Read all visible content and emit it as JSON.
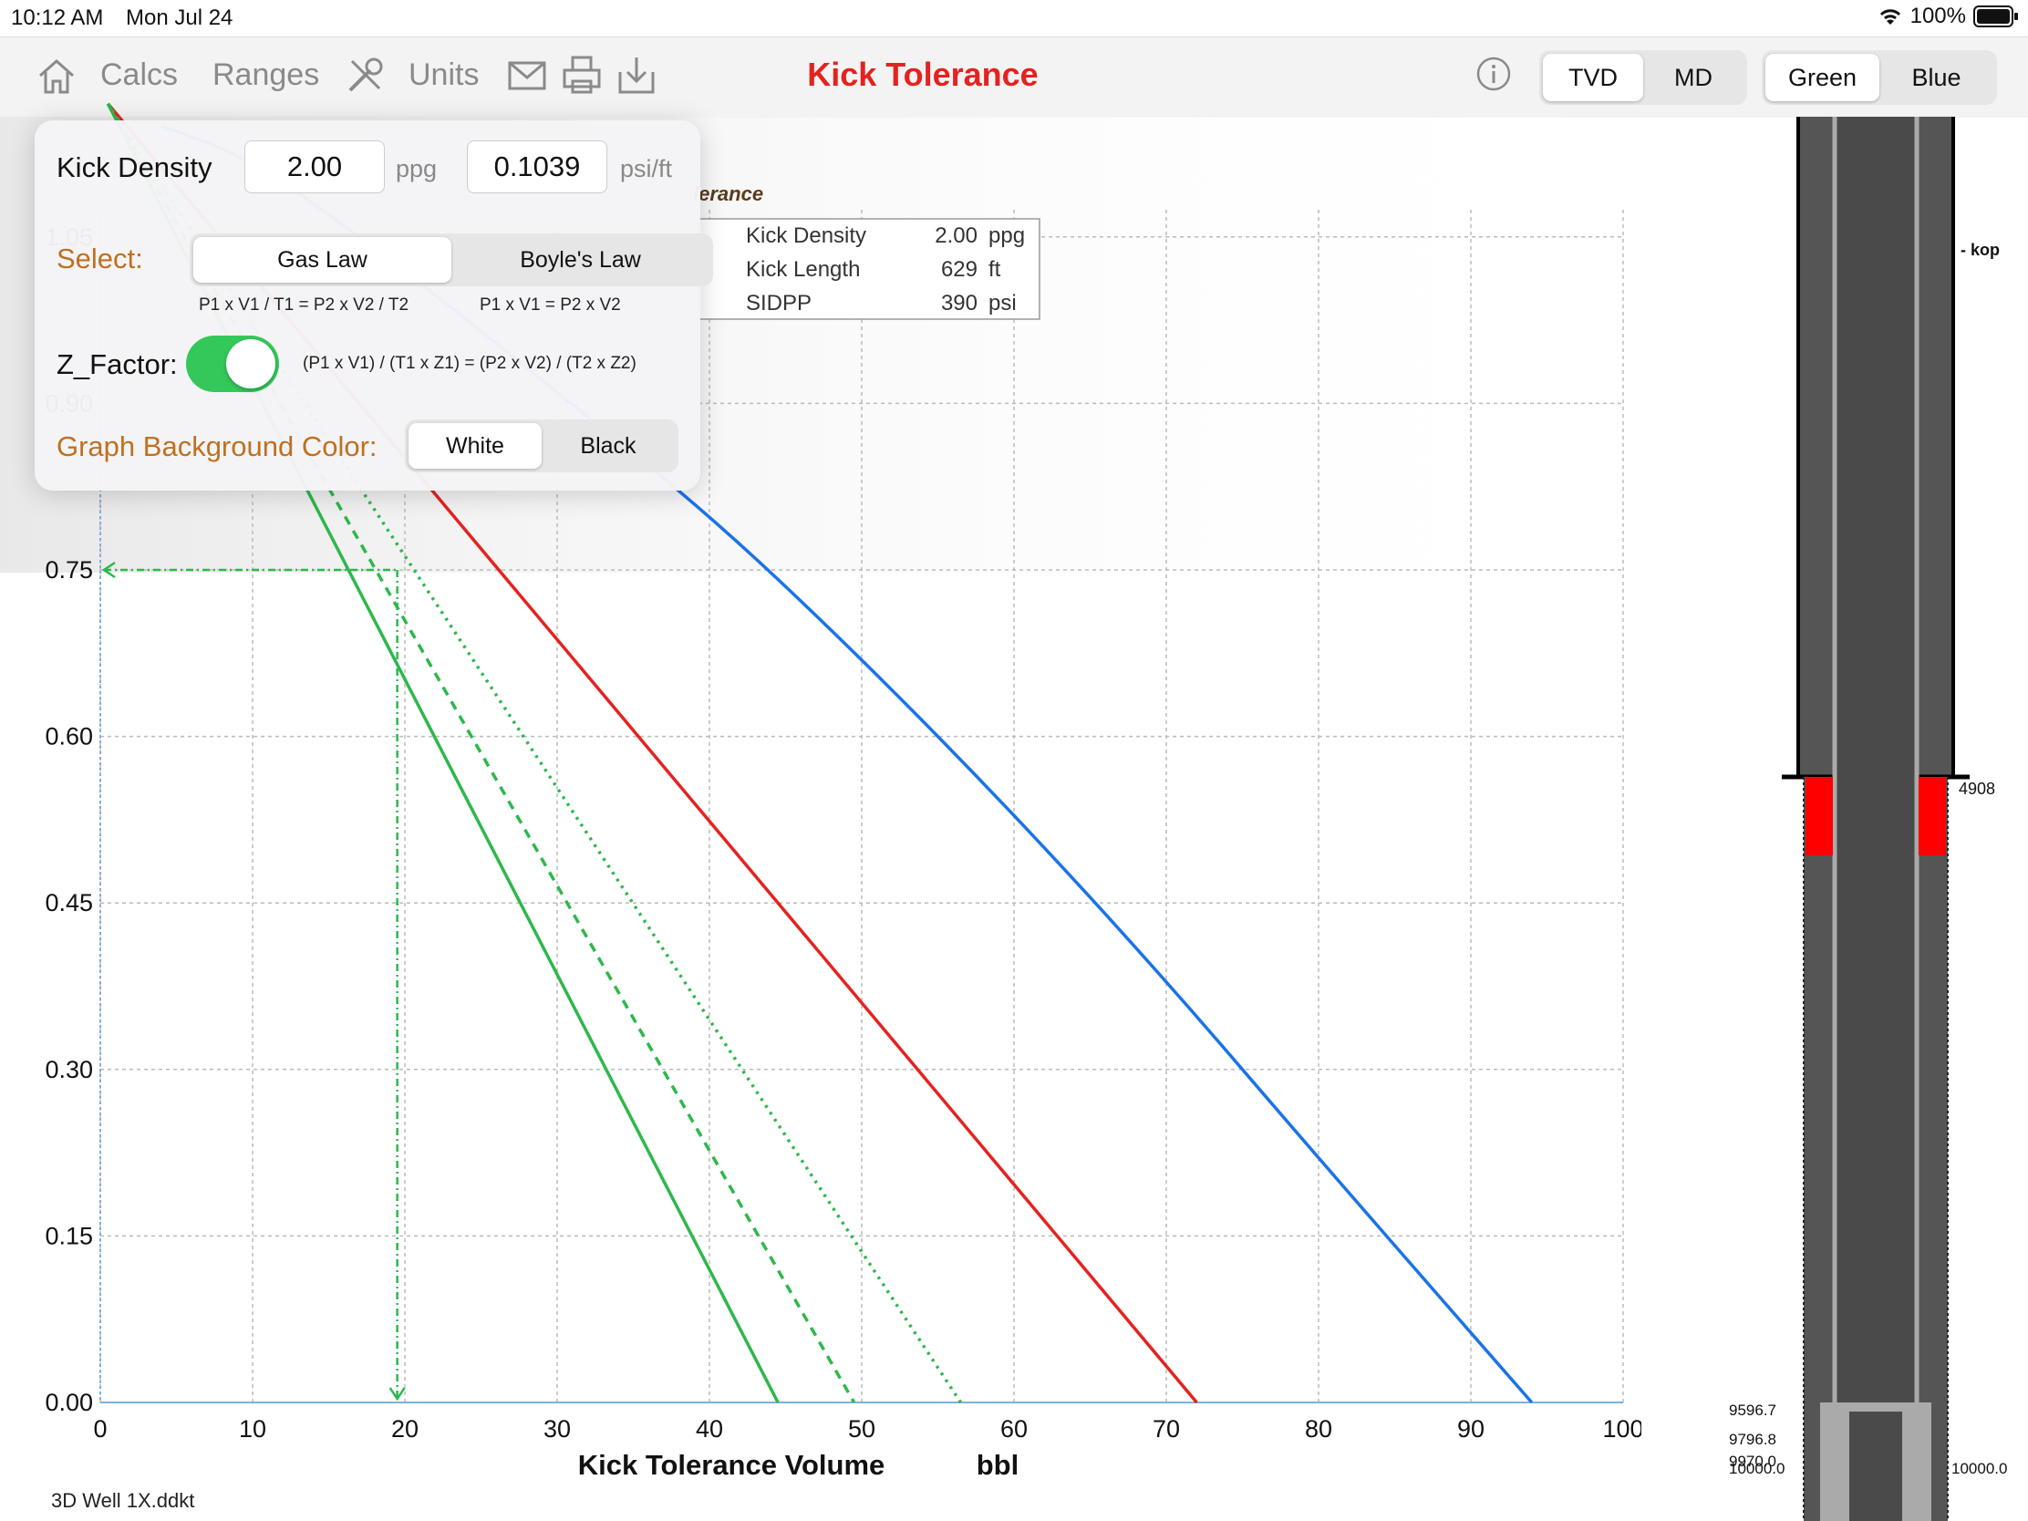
{
  "status": {
    "time": "10:12 AM",
    "date": "Mon Jul 24",
    "battery": "100%"
  },
  "toolbar": {
    "calcs": "Calcs",
    "ranges": "Ranges",
    "units": "Units",
    "title": "Kick Tolerance",
    "mode": {
      "tvd": "TVD",
      "md": "MD",
      "selected": "TVD"
    },
    "theme": {
      "green": "Green",
      "blue": "Blue",
      "selected": "Green"
    }
  },
  "popover": {
    "kick_density_label": "Kick Density",
    "kick_density_ppg": "2.00",
    "ppg_unit": "ppg",
    "kick_density_psift": "0.1039",
    "psift_unit": "psi/ft",
    "select_label": "Select:",
    "gas_law": "Gas Law",
    "boyles_law": "Boyle's Law",
    "gas_law_formula": "P1 x V1 / T1 = P2 x V2 / T2",
    "boyles_formula": "P1 x V1 = P2 x V2",
    "z_factor_label": "Z_Factor:",
    "z_factor_on": true,
    "z_formula": "(P1 x V1) / (T1 x Z1) = (P2 x V2) / (T2 x Z2)",
    "bg_label": "Graph Background Color:",
    "white": "White",
    "black": "Black",
    "bg_selected": "White"
  },
  "chart_data": {
    "type": "line",
    "title_fragment": "lerance",
    "xlabel": "Kick Tolerance Volume",
    "xunit": "bbl",
    "xlim": [
      0,
      100
    ],
    "ylim": [
      0,
      1.05
    ],
    "xticks": [
      "0",
      "10",
      "20",
      "30",
      "40",
      "50",
      "60",
      "70",
      "80",
      "90",
      "100"
    ],
    "yticks": [
      "0.00",
      "0.15",
      "0.30",
      "0.45",
      "0.60",
      "0.75",
      "0.90",
      "1.05"
    ],
    "legend": [
      {
        "label": "Kick Density",
        "value": "2.00",
        "unit": "ppg"
      },
      {
        "label": "Kick Length",
        "value": "629",
        "unit": "ft"
      },
      {
        "label": "SIDPP",
        "value": "390",
        "unit": "psi"
      }
    ],
    "series": [
      {
        "color": "#1a73e8",
        "style": "solid",
        "x": [
          4,
          10,
          20,
          30,
          40,
          50,
          60,
          70,
          80,
          94
        ],
        "y": [
          1.15,
          1.12,
          1.02,
          0.91,
          0.8,
          0.67,
          0.53,
          0.38,
          0.22,
          0.0
        ]
      },
      {
        "color": "#e5221f",
        "style": "solid",
        "x": [
          0.5,
          72
        ],
        "y": [
          1.17,
          0.0
        ]
      },
      {
        "color": "#2db84c",
        "style": "dotted",
        "x": [
          0.5,
          56.5
        ],
        "y": [
          1.17,
          0.0
        ]
      },
      {
        "color": "#2db84c",
        "style": "dashed",
        "x": [
          0.5,
          49.5
        ],
        "y": [
          1.17,
          0.0
        ]
      },
      {
        "color": "#2db84c",
        "style": "solid",
        "x": [
          0.5,
          44.5
        ],
        "y": [
          1.17,
          0.0
        ]
      }
    ],
    "marker": {
      "x": 19.5,
      "y": 0.75,
      "color": "#2db84c"
    },
    "grid": true
  },
  "well": {
    "kop_label": "- kop",
    "shoe_depth": "4908",
    "depth_labels": [
      "9596.7",
      "9796.8",
      "9970.0",
      "10000.0"
    ],
    "bottom_right": "10000.0"
  },
  "footer": {
    "filename": "3D Well 1X.ddkt"
  }
}
